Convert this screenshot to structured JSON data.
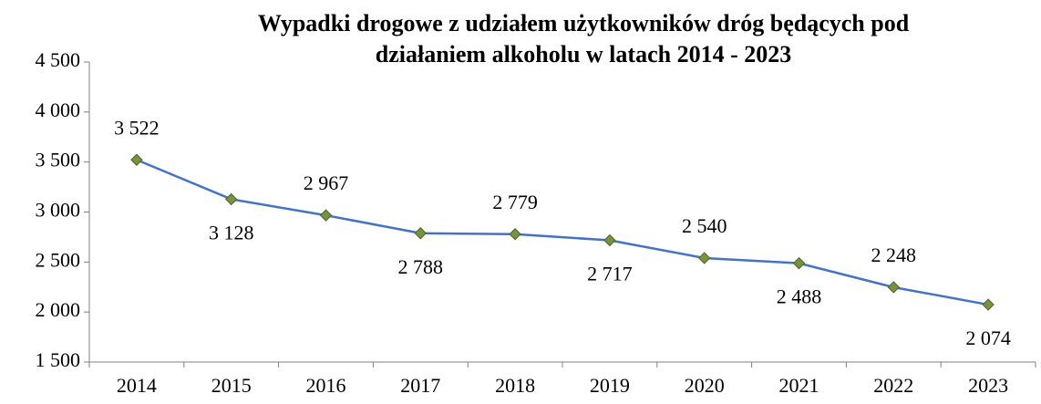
{
  "chart_data": {
    "type": "line",
    "title": [
      "Wypadki drogowe z udziałem użytkowników dróg będących pod",
      "działaniem alkoholu w latach 2014 - 2023"
    ],
    "categories": [
      "2014",
      "2015",
      "2016",
      "2017",
      "2018",
      "2019",
      "2020",
      "2021",
      "2022",
      "2023"
    ],
    "values": [
      3522,
      3128,
      2967,
      2788,
      2779,
      2717,
      2540,
      2488,
      2248,
      2074
    ],
    "value_labels": [
      "3 522",
      "3 128",
      "2 967",
      "2 788",
      "2 779",
      "2 717",
      "2 540",
      "2 488",
      "2 248",
      "2 074"
    ],
    "color": "#4472c4",
    "marker_color": "#77933c",
    "ylim": [
      1500,
      4500
    ],
    "yticks": [
      {
        "value": 1500,
        "label": "1 500"
      },
      {
        "value": 2000,
        "label": "2 000"
      },
      {
        "value": 2500,
        "label": "2 500"
      },
      {
        "value": 3000,
        "label": "3 000"
      },
      {
        "value": 3500,
        "label": "3 500"
      },
      {
        "value": 4000,
        "label": "4 000"
      },
      {
        "value": 4500,
        "label": "4 500"
      }
    ],
    "grid": false
  }
}
